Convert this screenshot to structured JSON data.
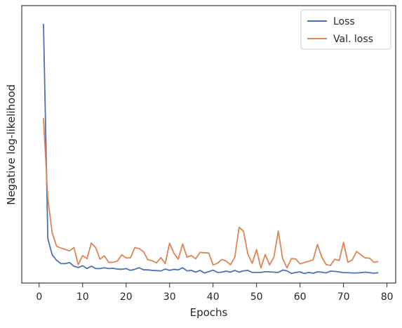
{
  "chart_data": {
    "type": "line",
    "xlabel": "Epochs",
    "ylabel": "Negative log-likelihood",
    "xlim": [
      -4,
      82
    ],
    "ylim": [
      0,
      100
    ],
    "xticks": [
      0,
      10,
      20,
      30,
      40,
      50,
      60,
      70,
      80
    ],
    "legend": "top-right",
    "grid": false,
    "series": [
      {
        "name": "Loss",
        "color": "#4c72b0",
        "x": [
          1,
          2,
          3,
          4,
          5,
          6,
          7,
          8,
          9,
          10,
          11,
          12,
          13,
          14,
          15,
          16,
          17,
          18,
          19,
          20,
          21,
          22,
          23,
          24,
          25,
          26,
          27,
          28,
          29,
          30,
          31,
          32,
          33,
          34,
          35,
          36,
          37,
          38,
          39,
          40,
          41,
          42,
          43,
          44,
          45,
          46,
          47,
          48,
          49,
          50,
          51,
          52,
          53,
          54,
          55,
          56,
          57,
          58,
          59,
          60,
          61,
          62,
          63,
          64,
          65,
          66,
          67,
          68,
          69,
          70,
          71,
          72,
          73,
          74,
          75,
          76,
          77,
          78
        ],
        "y": [
          100,
          17.2,
          10.9,
          8.8,
          7.5,
          7.5,
          7.9,
          6.5,
          6.0,
          6.7,
          5.6,
          6.5,
          5.6,
          5.6,
          5.9,
          5.6,
          5.7,
          5.4,
          5.3,
          5.6,
          4.9,
          5.3,
          5.9,
          5.1,
          5.1,
          4.9,
          4.8,
          4.7,
          5.4,
          4.9,
          5.3,
          5.1,
          5.9,
          4.7,
          4.9,
          4.2,
          4.9,
          3.9,
          4.4,
          5.0,
          4.1,
          4.2,
          4.6,
          4.2,
          4.9,
          4.2,
          4.7,
          4.9,
          4.1,
          4.1,
          4.1,
          4.4,
          4.3,
          4.2,
          4.1,
          5.0,
          4.7,
          3.7,
          4.1,
          4.3,
          3.7,
          4.1,
          3.8,
          4.3,
          4.2,
          3.9,
          4.6,
          4.5,
          4.3,
          4.0,
          4.0,
          3.9,
          3.9,
          4.0,
          4.2,
          4.0,
          3.8,
          4.0
        ]
      },
      {
        "name": "Val. loss",
        "color": "#dd8452",
        "x": [
          1,
          2,
          3,
          4,
          5,
          6,
          7,
          8,
          9,
          10,
          11,
          12,
          13,
          14,
          15,
          16,
          17,
          18,
          19,
          20,
          21,
          22,
          23,
          24,
          25,
          26,
          27,
          28,
          29,
          30,
          31,
          32,
          33,
          34,
          35,
          36,
          37,
          38,
          39,
          40,
          41,
          42,
          43,
          44,
          45,
          46,
          47,
          48,
          49,
          50,
          51,
          52,
          53,
          54,
          55,
          56,
          57,
          58,
          59,
          60,
          61,
          62,
          63,
          64,
          65,
          66,
          67,
          68,
          69,
          70,
          71,
          72,
          73,
          74,
          75,
          76,
          77,
          78
        ],
        "y": [
          63.7,
          32.6,
          19.4,
          14.2,
          13.5,
          13.0,
          12.4,
          13.7,
          7.1,
          10.6,
          9.4,
          15.4,
          13.7,
          9.2,
          10.5,
          8.0,
          8.0,
          8.5,
          10.9,
          9.7,
          9.7,
          13.7,
          13.3,
          12.1,
          9.0,
          8.6,
          7.8,
          9.8,
          7.5,
          15.4,
          11.5,
          9.2,
          15.1,
          10.0,
          10.6,
          9.4,
          11.8,
          11.7,
          11.6,
          7.0,
          7.6,
          9.1,
          8.5,
          7.1,
          9.9,
          21.5,
          20.0,
          11.2,
          7.6,
          12.9,
          5.8,
          11.0,
          7.0,
          10.0,
          20.1,
          9.4,
          5.9,
          9.4,
          9.3,
          7.4,
          7.9,
          8.4,
          8.9,
          14.9,
          10.0,
          7.1,
          6.8,
          9.2,
          8.7,
          15.7,
          8.0,
          8.9,
          12.2,
          10.9,
          9.7,
          9.6,
          8.0,
          8.3
        ]
      }
    ]
  }
}
